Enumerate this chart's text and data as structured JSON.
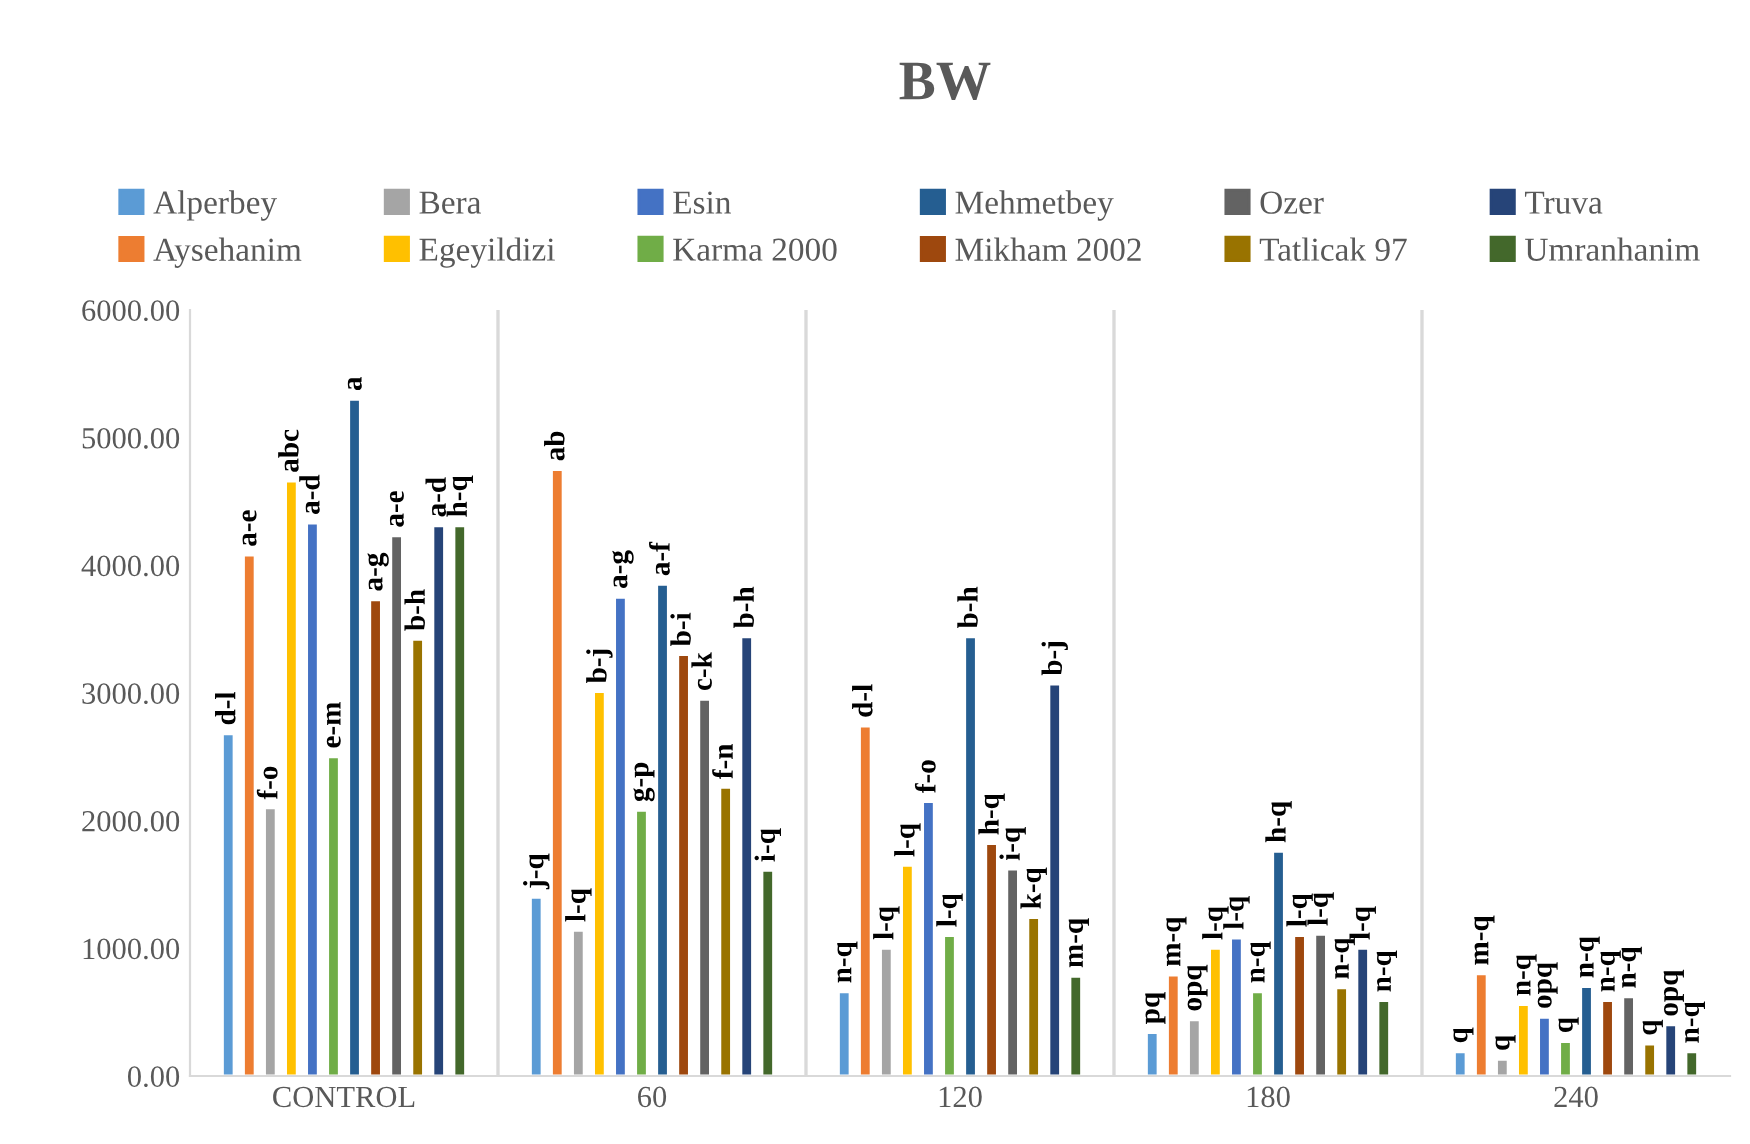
{
  "chart_data": {
    "type": "bar",
    "title": "BW",
    "categories": [
      "CONTROL",
      "60",
      "120",
      "180",
      "240"
    ],
    "ylim": [
      0,
      6000
    ],
    "yticks": [
      {
        "value": 0,
        "label": "0.00"
      },
      {
        "value": 1000,
        "label": "1000.00"
      },
      {
        "value": 2000,
        "label": "2000.00"
      },
      {
        "value": 3000,
        "label": "3000.00"
      },
      {
        "value": 4000,
        "label": "4000.00"
      },
      {
        "value": 5000,
        "label": "5000.00"
      },
      {
        "value": 6000,
        "label": "6000.00"
      }
    ],
    "grid": "x",
    "legend": "top",
    "series": [
      {
        "name": "Alperbey",
        "color": "#5b9bd5",
        "values": [
          2680,
          1400,
          660,
          340,
          190
        ],
        "value_labels": [
          "d-l",
          "j-q",
          "n-q",
          "pq",
          "q"
        ]
      },
      {
        "name": "Aysehanim",
        "color": "#ed7d31",
        "values": [
          4080,
          4750,
          2740,
          790,
          800
        ],
        "value_labels": [
          "a-e",
          "ab",
          "d-l",
          "m-q",
          "m-q"
        ]
      },
      {
        "name": "Bera",
        "color": "#a5a5a5",
        "values": [
          2100,
          1140,
          1000,
          440,
          130
        ],
        "value_labels": [
          "f-o",
          "l-q",
          "l-q",
          "opq",
          "q"
        ]
      },
      {
        "name": "Egeyildizi",
        "color": "#ffc000",
        "values": [
          4660,
          3010,
          1650,
          1000,
          560
        ],
        "value_labels": [
          "abc",
          "b-j",
          "l-q",
          "l-q",
          "n-q"
        ]
      },
      {
        "name": "Esin",
        "color": "#4472c4",
        "values": [
          4330,
          3750,
          2150,
          1080,
          460
        ],
        "value_labels": [
          "a-d",
          "a-g",
          "f-o",
          "l-q",
          "opq"
        ]
      },
      {
        "name": "Karma 2000",
        "color": "#70ad47",
        "values": [
          2500,
          2080,
          1100,
          660,
          270
        ],
        "value_labels": [
          "e-m",
          "g-p",
          "l-q",
          "n-q",
          "q"
        ]
      },
      {
        "name": "Mehmetbey",
        "color": "#255e91",
        "values": [
          5300,
          3850,
          3440,
          1760,
          700
        ],
        "value_labels": [
          "a",
          "a-f",
          "b-h",
          "h-q",
          "n-q"
        ]
      },
      {
        "name": "Mikham 2002",
        "color": "#9e480e",
        "values": [
          3730,
          3300,
          1820,
          1100,
          590
        ],
        "value_labels": [
          "a-g",
          "b-i",
          "h-q",
          "l-q",
          "n-q"
        ]
      },
      {
        "name": "Ozer",
        "color": "#636363",
        "values": [
          4230,
          2950,
          1620,
          1110,
          620
        ],
        "value_labels": [
          "a-e",
          "c-k",
          "i-q",
          "l-q",
          "n-q"
        ]
      },
      {
        "name": "Tatlicak 97",
        "color": "#997300",
        "values": [
          3420,
          2260,
          1240,
          690,
          250
        ],
        "value_labels": [
          "b-h",
          "f-n",
          "k-q",
          "n-q",
          "q"
        ]
      },
      {
        "name": "Truva",
        "color": "#264478",
        "values": [
          4310,
          3440,
          3070,
          1000,
          400
        ],
        "value_labels": [
          "a-d",
          "b-h",
          "b-j",
          "l-q",
          "opq"
        ]
      },
      {
        "name": "Umranhanim",
        "color": "#43682b",
        "values": [
          4310,
          1610,
          780,
          590,
          190
        ],
        "value_labels": [
          "h-q",
          "i-q",
          "m-q",
          "n-q",
          "n-q"
        ]
      }
    ]
  }
}
